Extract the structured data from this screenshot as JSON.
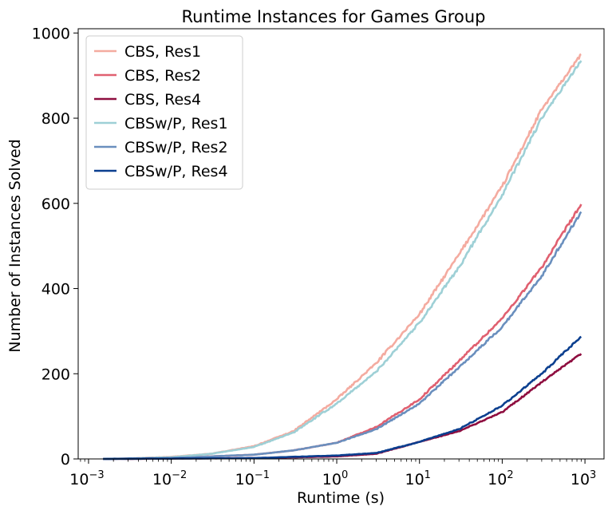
{
  "chart_data": {
    "type": "line",
    "title": "Runtime Instances for Games Group",
    "xlabel": "Runtime (s)",
    "ylabel": "Number of Instances Solved",
    "xscale": "log",
    "xlim": [
      0.00075,
      1700
    ],
    "ylim": [
      0,
      1010
    ],
    "x_ticks": [
      0.001,
      0.01,
      0.1,
      1,
      10,
      100,
      1000
    ],
    "x_tick_labels": [
      {
        "base": "10",
        "exp": "−3"
      },
      {
        "base": "10",
        "exp": "−2"
      },
      {
        "base": "10",
        "exp": "−1"
      },
      {
        "base": "10",
        "exp": "0"
      },
      {
        "base": "10",
        "exp": "1"
      },
      {
        "base": "10",
        "exp": "2"
      },
      {
        "base": "10",
        "exp": "3"
      }
    ],
    "y_ticks": [
      0,
      200,
      400,
      600,
      800,
      1000
    ],
    "y_tick_labels": [
      "0",
      "200",
      "400",
      "600",
      "800",
      "1000"
    ],
    "grid": false,
    "legend_position": "top-left",
    "series": [
      {
        "name": "CBS, Res1",
        "color": "#f4aba0",
        "points": [
          [
            0.0015,
            0
          ],
          [
            0.003,
            1
          ],
          [
            0.01,
            5
          ],
          [
            0.03,
            12
          ],
          [
            0.1,
            30
          ],
          [
            0.3,
            65
          ],
          [
            1,
            140
          ],
          [
            3,
            225
          ],
          [
            10,
            340
          ],
          [
            30,
            480
          ],
          [
            100,
            640
          ],
          [
            300,
            820
          ],
          [
            900,
            950
          ]
        ]
      },
      {
        "name": "CBS, Res2",
        "color": "#e06070",
        "points": [
          [
            0.0015,
            0
          ],
          [
            0.01,
            2
          ],
          [
            0.1,
            10
          ],
          [
            0.3,
            20
          ],
          [
            1,
            38
          ],
          [
            3,
            75
          ],
          [
            10,
            140
          ],
          [
            30,
            230
          ],
          [
            100,
            330
          ],
          [
            300,
            450
          ],
          [
            900,
            598
          ]
        ]
      },
      {
        "name": "CBS, Res4",
        "color": "#8e0d3f",
        "points": [
          [
            0.0015,
            0
          ],
          [
            0.1,
            2
          ],
          [
            1,
            6
          ],
          [
            3,
            12
          ],
          [
            10,
            40
          ],
          [
            30,
            65
          ],
          [
            100,
            110
          ],
          [
            300,
            180
          ],
          [
            900,
            247
          ]
        ]
      },
      {
        "name": "CBSw/P, Res1",
        "color": "#9ed0d6",
        "points": [
          [
            0.0015,
            0
          ],
          [
            0.003,
            1
          ],
          [
            0.01,
            4
          ],
          [
            0.03,
            12
          ],
          [
            0.1,
            28
          ],
          [
            0.3,
            62
          ],
          [
            1,
            130
          ],
          [
            3,
            205
          ],
          [
            10,
            320
          ],
          [
            30,
            450
          ],
          [
            100,
            620
          ],
          [
            300,
            800
          ],
          [
            900,
            935
          ]
        ]
      },
      {
        "name": "CBSw/P, Res2",
        "color": "#6a8fbe",
        "points": [
          [
            0.0015,
            0
          ],
          [
            0.01,
            2
          ],
          [
            0.1,
            10
          ],
          [
            0.3,
            20
          ],
          [
            1,
            38
          ],
          [
            3,
            70
          ],
          [
            10,
            130
          ],
          [
            30,
            215
          ],
          [
            100,
            310
          ],
          [
            300,
            430
          ],
          [
            900,
            580
          ]
        ]
      },
      {
        "name": "CBSw/P, Res4",
        "color": "#0b3f8f",
        "points": [
          [
            0.0015,
            0
          ],
          [
            0.1,
            2
          ],
          [
            1,
            8
          ],
          [
            3,
            14
          ],
          [
            10,
            40
          ],
          [
            30,
            70
          ],
          [
            100,
            125
          ],
          [
            300,
            200
          ],
          [
            900,
            287
          ]
        ]
      }
    ]
  }
}
